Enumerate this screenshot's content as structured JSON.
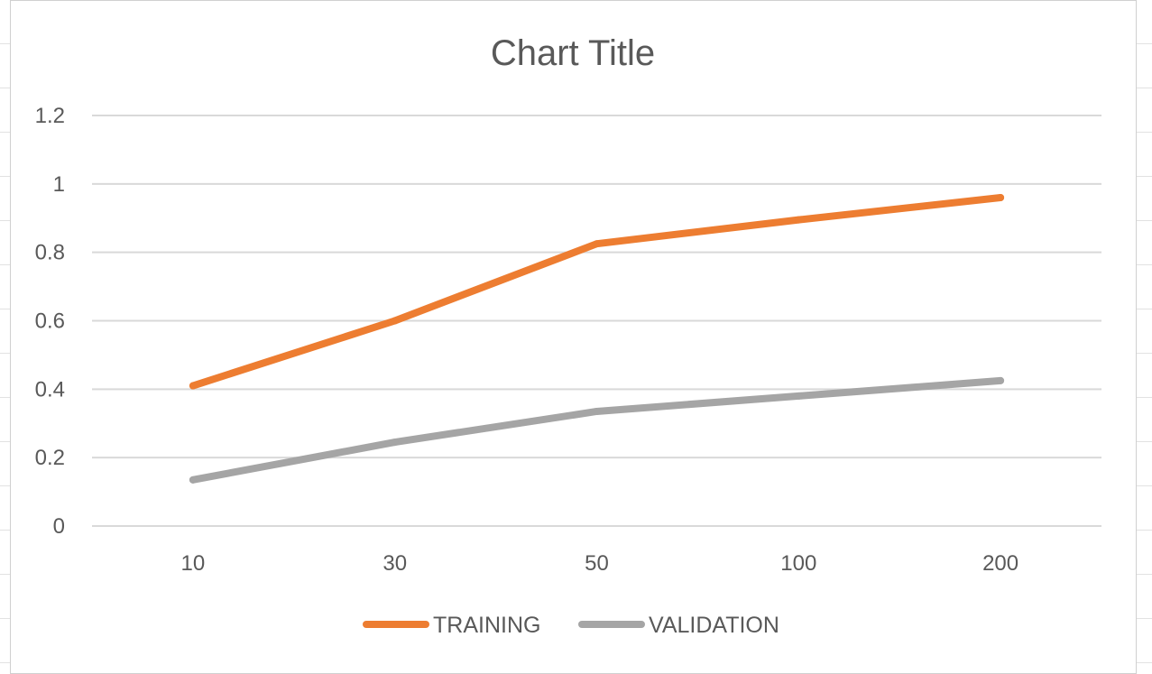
{
  "chart_data": {
    "type": "line",
    "title": "Chart Title",
    "categories": [
      "10",
      "30",
      "50",
      "100",
      "200"
    ],
    "series": [
      {
        "name": "TRAINING",
        "values": [
          0.41,
          0.6,
          0.825,
          0.895,
          0.96
        ],
        "color": "#ED7D31"
      },
      {
        "name": "VALIDATION",
        "values": [
          0.135,
          0.245,
          0.335,
          0.38,
          0.425
        ],
        "color": "#A5A5A5"
      }
    ],
    "ylim": [
      0,
      1.2
    ],
    "yticks": [
      "0",
      "0.2",
      "0.4",
      "0.6",
      "0.8",
      "1",
      "1.2"
    ],
    "grid": true,
    "legend": "bottom"
  }
}
